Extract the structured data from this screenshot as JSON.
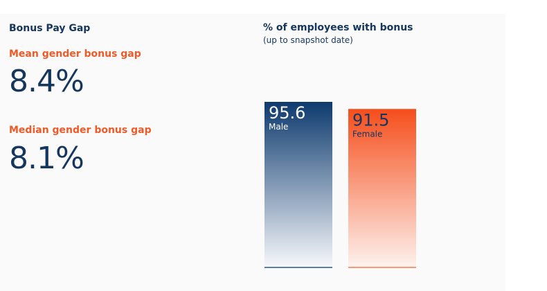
{
  "left_panel": {
    "title": "Bonus Pay Gap",
    "mean_label": "Mean gender bonus gap",
    "mean_value": "8.4%",
    "median_label": "Median gender bonus gap",
    "median_value": "8.1%"
  },
  "colors": {
    "navy": "#14365f",
    "orange": "#f05a28",
    "male_top": "#0d3a6e",
    "male_bottom": "#f7f8fb",
    "female_top": "#f54e1c",
    "female_bottom": "#fdf2ee"
  },
  "chart_data": {
    "type": "bar",
    "title": "% of employees with bonus",
    "subtitle": "(up to snapshot date)",
    "categories": [
      "Male",
      "Female"
    ],
    "values": [
      95.6,
      91.5
    ],
    "value_labels": [
      "95.6",
      "91.5"
    ],
    "ylim": [
      0,
      100
    ],
    "grid": false
  }
}
